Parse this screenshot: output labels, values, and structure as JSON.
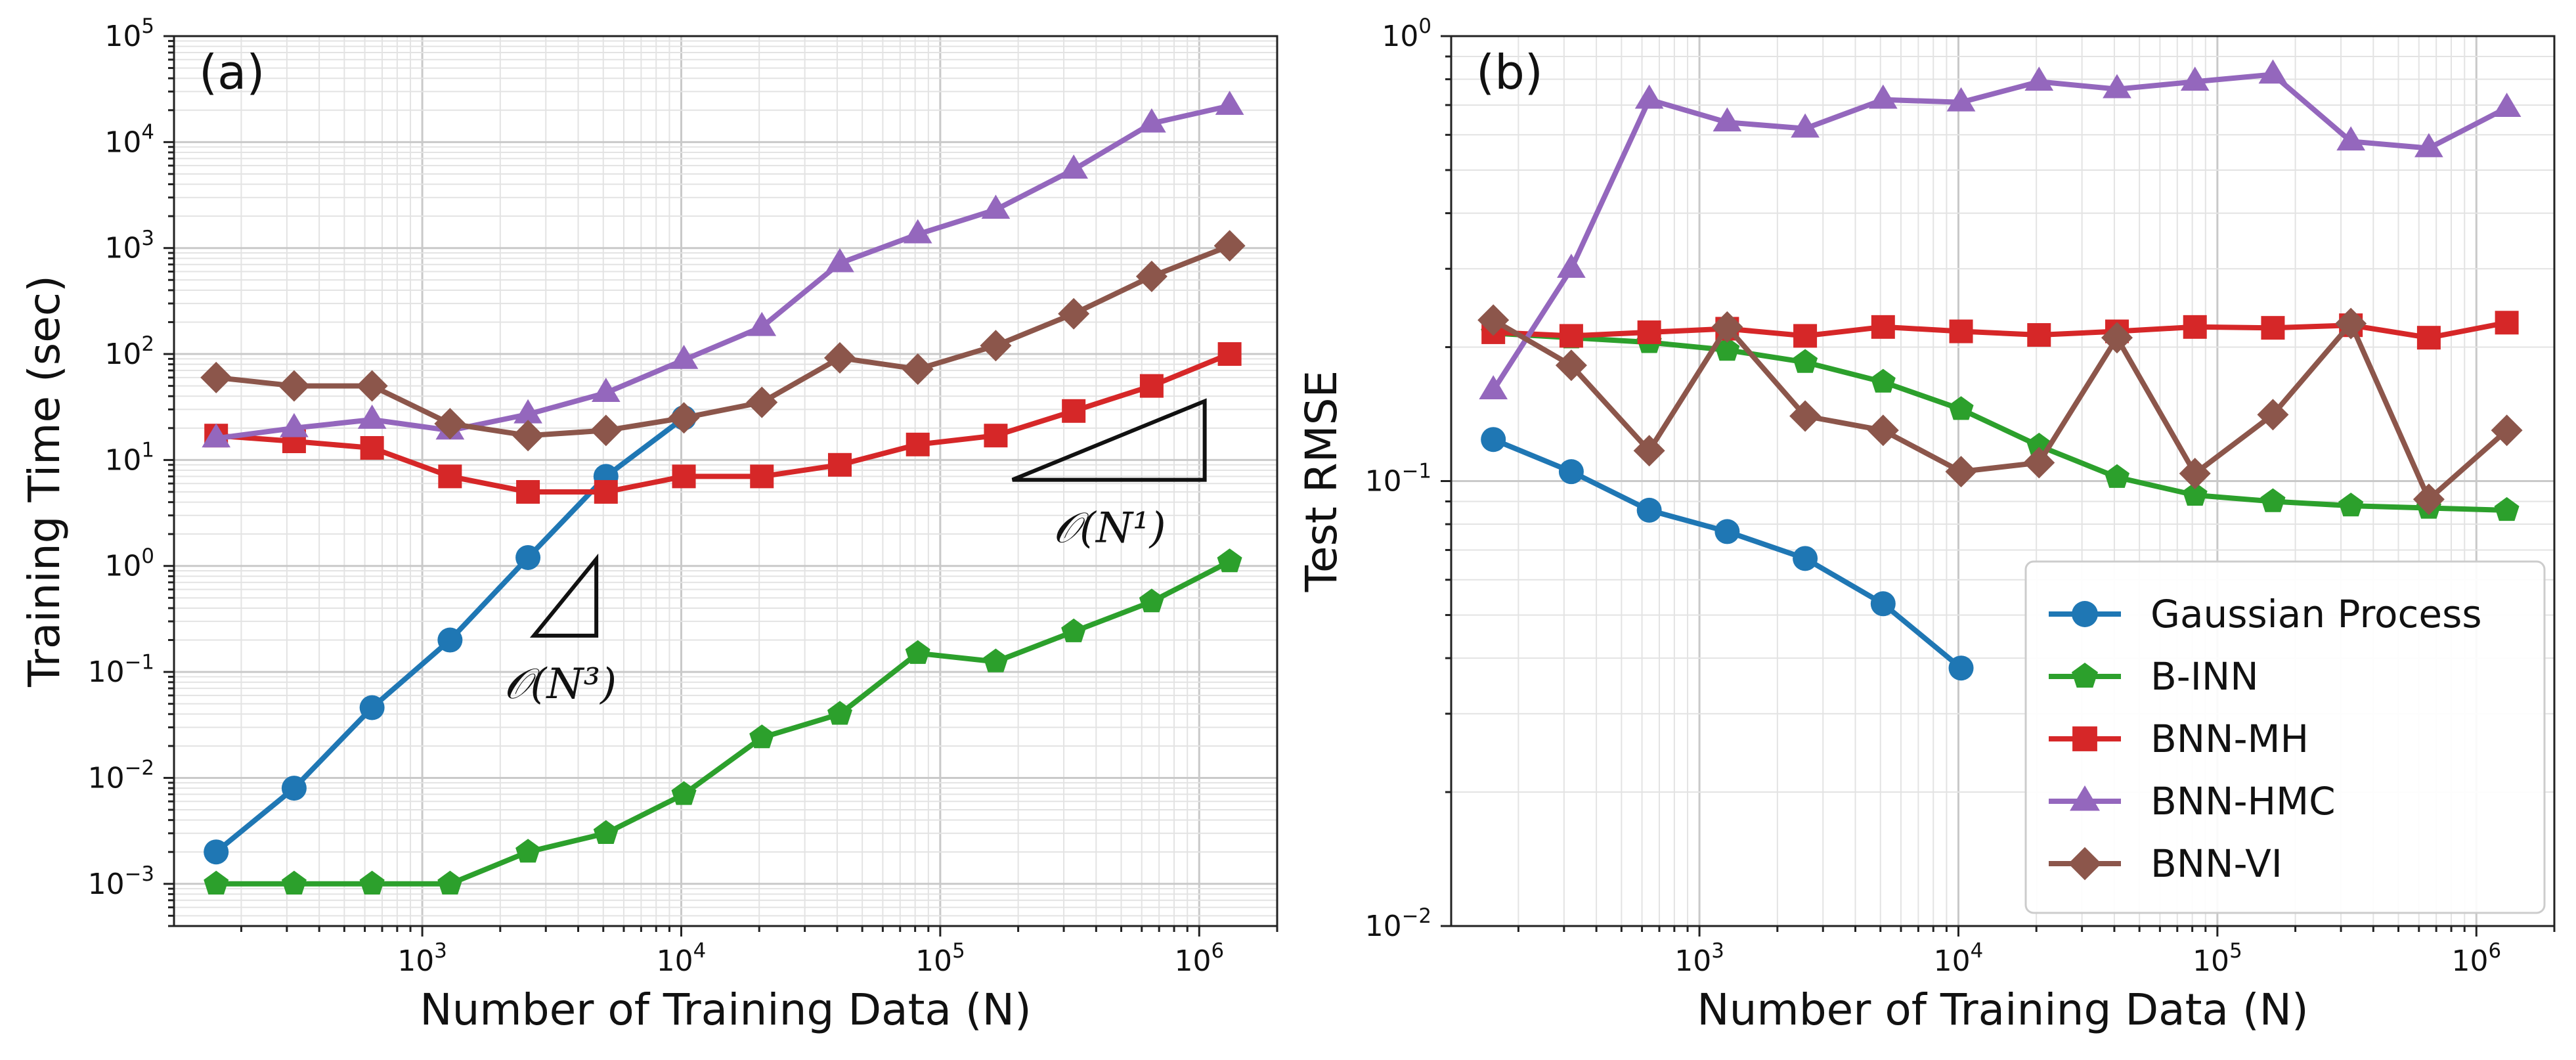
{
  "legend": {
    "entries": [
      "Gaussian Process",
      "B-INN",
      "BNN-MH",
      "BNN-HMC",
      "BNN-VI"
    ]
  },
  "chart_data": [
    {
      "id": "a",
      "type": "line",
      "panel_label": "(a)",
      "xlabel": "Number of Training Data (N)",
      "ylabel": "Training Time (sec)",
      "xscale": "log",
      "yscale": "log",
      "xlim": [
        110,
        2000000
      ],
      "ylim": [
        0.0004,
        100000
      ],
      "xticks": [
        {
          "base": "10",
          "exp": "3"
        },
        {
          "base": "10",
          "exp": "4"
        },
        {
          "base": "10",
          "exp": "5"
        },
        {
          "base": "10",
          "exp": "6"
        }
      ],
      "yticks": [
        {
          "base": "10",
          "exp": "−3"
        },
        {
          "base": "10",
          "exp": "−2"
        },
        {
          "base": "10",
          "exp": "−1"
        },
        {
          "base": "10",
          "exp": "0"
        },
        {
          "base": "10",
          "exp": "1"
        },
        {
          "base": "10",
          "exp": "2"
        },
        {
          "base": "10",
          "exp": "3"
        },
        {
          "base": "10",
          "exp": "4"
        },
        {
          "base": "10",
          "exp": "5"
        }
      ],
      "grid": true,
      "annotations": [
        {
          "text": "𝒪(N³)",
          "slope": 3
        },
        {
          "text": "𝒪(N¹)",
          "slope": 1
        }
      ],
      "series": [
        {
          "name": "Gaussian Process",
          "color": "#1f77b4",
          "marker": "circle",
          "x": [
            160,
            320,
            640,
            1280,
            2560,
            5120,
            10240
          ],
          "y": [
            0.002,
            0.008,
            0.046,
            0.2,
            1.2,
            7,
            25
          ]
        },
        {
          "name": "B-INN",
          "color": "#2ca02c",
          "marker": "pentagon",
          "x": [
            160,
            320,
            640,
            1280,
            2560,
            5120,
            10240,
            20480,
            40960,
            81920,
            163840,
            327680,
            655360,
            1310720
          ],
          "y": [
            0.001,
            0.001,
            0.001,
            0.001,
            0.002,
            0.003,
            0.007,
            0.024,
            0.04,
            0.15,
            0.125,
            0.24,
            0.46,
            1.1
          ]
        },
        {
          "name": "BNN-MH",
          "color": "#d62728",
          "marker": "square",
          "x": [
            160,
            320,
            640,
            1280,
            2560,
            5120,
            10240,
            20480,
            40960,
            81920,
            163840,
            327680,
            655360,
            1310720
          ],
          "y": [
            17,
            15,
            13,
            7,
            5,
            5,
            7,
            7,
            9,
            14,
            17,
            29,
            50,
            100
          ]
        },
        {
          "name": "BNN-HMC",
          "color": "#9467bd",
          "marker": "triangle",
          "x": [
            160,
            320,
            640,
            1280,
            2560,
            5120,
            10240,
            20480,
            40960,
            81920,
            163840,
            327680,
            655360,
            1310720
          ],
          "y": [
            16,
            20,
            24,
            19,
            27,
            43,
            88,
            180,
            720,
            1350,
            2300,
            5500,
            15000,
            22000
          ]
        },
        {
          "name": "BNN-VI",
          "color": "#8c564b",
          "marker": "diamond",
          "x": [
            160,
            320,
            640,
            1280,
            2560,
            5120,
            10240,
            20480,
            40960,
            81920,
            163840,
            327680,
            655360,
            1310720
          ],
          "y": [
            60,
            50,
            50,
            22,
            17,
            19,
            25,
            35,
            92,
            72,
            120,
            240,
            540,
            1050
          ]
        }
      ]
    },
    {
      "id": "b",
      "type": "line",
      "panel_label": "(b)",
      "xlabel": "Number of Training Data (N)",
      "ylabel": "Test RMSE",
      "xscale": "log",
      "yscale": "log",
      "xlim": [
        110,
        2000000
      ],
      "ylim": [
        0.01,
        1
      ],
      "xticks": [
        {
          "base": "10",
          "exp": "3"
        },
        {
          "base": "10",
          "exp": "4"
        },
        {
          "base": "10",
          "exp": "5"
        },
        {
          "base": "10",
          "exp": "6"
        }
      ],
      "yticks": [
        {
          "base": "10",
          "exp": "−2"
        },
        {
          "base": "10",
          "exp": "−1"
        },
        {
          "base": "10",
          "exp": "0"
        }
      ],
      "grid": true,
      "legend_position": "lower-right",
      "series": [
        {
          "name": "Gaussian Process",
          "color": "#1f77b4",
          "marker": "circle",
          "x": [
            160,
            320,
            640,
            1280,
            2560,
            5120,
            10240
          ],
          "y": [
            0.124,
            0.105,
            0.086,
            0.077,
            0.067,
            0.053,
            0.038
          ]
        },
        {
          "name": "B-INN",
          "color": "#2ca02c",
          "marker": "pentagon",
          "x": [
            160,
            320,
            640,
            1280,
            2560,
            5120,
            10240,
            20480,
            40960,
            81920,
            163840,
            327680,
            655360,
            1310720
          ],
          "y": [
            0.215,
            0.21,
            0.205,
            0.197,
            0.185,
            0.167,
            0.145,
            0.12,
            0.102,
            0.093,
            0.09,
            0.088,
            0.087,
            0.086
          ]
        },
        {
          "name": "BNN-MH",
          "color": "#d62728",
          "marker": "square",
          "x": [
            160,
            320,
            640,
            1280,
            2560,
            5120,
            10240,
            20480,
            40960,
            81920,
            163840,
            327680,
            655360,
            1310720
          ],
          "y": [
            0.216,
            0.212,
            0.216,
            0.22,
            0.212,
            0.222,
            0.217,
            0.213,
            0.217,
            0.222,
            0.221,
            0.224,
            0.21,
            0.227
          ]
        },
        {
          "name": "BNN-HMC",
          "color": "#9467bd",
          "marker": "triangle",
          "x": [
            160,
            320,
            640,
            1280,
            2560,
            5120,
            10240,
            20480,
            40960,
            81920,
            163840,
            327680,
            655360,
            1310720
          ],
          "y": [
            0.16,
            0.3,
            0.72,
            0.64,
            0.62,
            0.72,
            0.71,
            0.79,
            0.76,
            0.79,
            0.82,
            0.58,
            0.56,
            0.69
          ]
        },
        {
          "name": "BNN-VI",
          "color": "#8c564b",
          "marker": "diamond",
          "x": [
            160,
            320,
            640,
            1280,
            2560,
            5120,
            10240,
            20480,
            40960,
            81920,
            163840,
            327680,
            655360,
            1310720
          ],
          "y": [
            0.23,
            0.182,
            0.117,
            0.222,
            0.14,
            0.13,
            0.105,
            0.11,
            0.21,
            0.104,
            0.141,
            0.226,
            0.091,
            0.13
          ]
        }
      ]
    }
  ]
}
